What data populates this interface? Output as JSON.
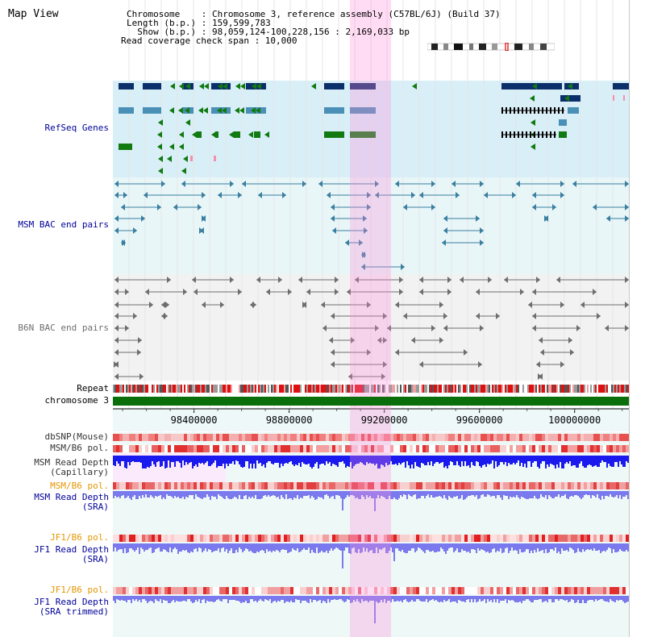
{
  "app_title": "Map View",
  "info": {
    "chromosome": "Chromosome    : Chromosome 3, reference assembly (C57BL/6J) (Build 37)",
    "length": "Length (b.p.) : 159,599,783",
    "show": "  Show (b.p.) : 98,059,124-100,228,156 : 2,169,033 bp",
    "coverage": "Read coverage check span : 10,000"
  },
  "tracks": {
    "refseq": "RefSeq Genes",
    "msm_bac": "MSM BAC end pairs",
    "b6n_bac": "B6N BAC end pairs",
    "repeat": "Repeat",
    "chromosome": "chromosome 3",
    "dbsnp": "dbSNP(Mouse)",
    "msm_b6_pol": "MSM/B6 pol.",
    "msm_depth_cap": "MSM Read Depth\n(Capillary)",
    "msm_b6_pol_2": "MSM/B6 pol.",
    "msm_depth_sra": "MSM Read Depth\n(SRA)",
    "jf1_b6_pol": "JF1/B6 pol.",
    "jf1_depth_sra": "JF1 Read Depth\n(SRA)",
    "jf1_b6_pol_2": "JF1/B6 pol.",
    "jf1_depth_trim": "JF1 Read Depth\n(SRA trimmed)"
  },
  "axis": {
    "ticks": [
      {
        "pos": 98400000,
        "label": "98400000"
      },
      {
        "pos": 98800000,
        "label": "98800000"
      },
      {
        "pos": 99200000,
        "label": "99200000"
      },
      {
        "pos": 99600000,
        "label": "99600000"
      },
      {
        "pos": 100000000,
        "label": "100000000"
      }
    ],
    "range_start": 98059124,
    "range_end": 100228156,
    "highlight_start": 99050000,
    "highlight_end": 99220000
  },
  "colors": {
    "label_blue": "#000099",
    "label_orange": "#e69500",
    "label_black": "#000000",
    "gene_navy": "#0b2f6b",
    "gene_steel": "#4a8fb6",
    "gene_green": "#117a11",
    "bac_msm": "#3a7fa0",
    "bac_b6n": "#6e6e6e",
    "depth_blue": "#1a1aee",
    "depth_lav": "#7a7aee"
  },
  "icons": [
    "chromosome-ideogram",
    "arrow-head-left",
    "arrow-head-right"
  ]
}
